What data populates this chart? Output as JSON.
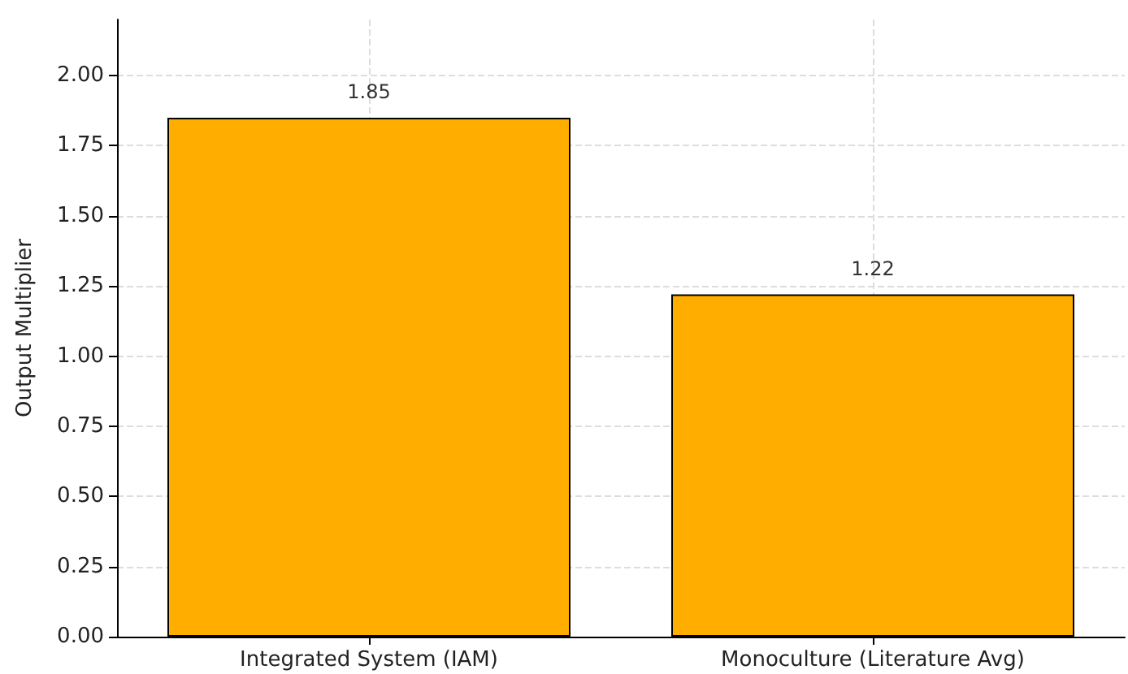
{
  "chart_data": {
    "type": "bar",
    "ylabel": "Output Multiplier",
    "categories": [
      "Integrated System (IAM)",
      "Monoculture (Literature Avg)"
    ],
    "values": [
      1.85,
      1.22
    ],
    "color": "#ffae00",
    "data_labels": true,
    "ylim": [
      0,
      2.2
    ],
    "yticks": [
      {
        "value": 0,
        "label": "0.00"
      },
      {
        "value": 0.25,
        "label": "0.25"
      },
      {
        "value": 0.5,
        "label": "0.50"
      },
      {
        "value": 0.75,
        "label": "0.75"
      },
      {
        "value": 1,
        "label": "1.00"
      },
      {
        "value": 1.25,
        "label": "1.25"
      },
      {
        "value": 1.5,
        "label": "1.50"
      },
      {
        "value": 1.75,
        "label": "1.75"
      },
      {
        "value": 2,
        "label": "2.00"
      }
    ],
    "grid": true
  }
}
